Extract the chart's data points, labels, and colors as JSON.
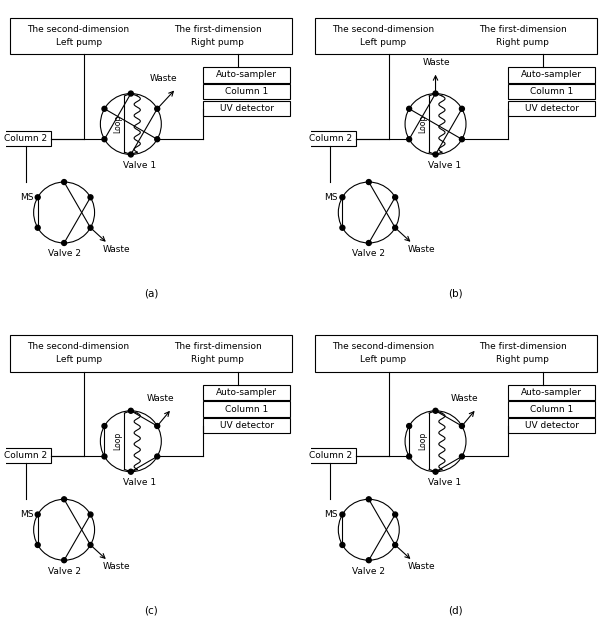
{
  "bg": "#ffffff",
  "lc": "#000000",
  "lw": 0.8,
  "fs": 6.5,
  "panels": [
    "(a)",
    "(b)",
    "(c)",
    "(d)"
  ],
  "header": [
    "The second-dimension\nLeft pump",
    "The first-dimension\nRight pump"
  ],
  "right_boxes": [
    "Auto-sampler",
    "Column 1",
    "UV detector"
  ],
  "v1_label": "Valve 1",
  "v2_label": "Valve 2",
  "col2_label": "Column 2",
  "ms_label": "MS",
  "waste_label": "Waste",
  "loop_label": "Loop"
}
